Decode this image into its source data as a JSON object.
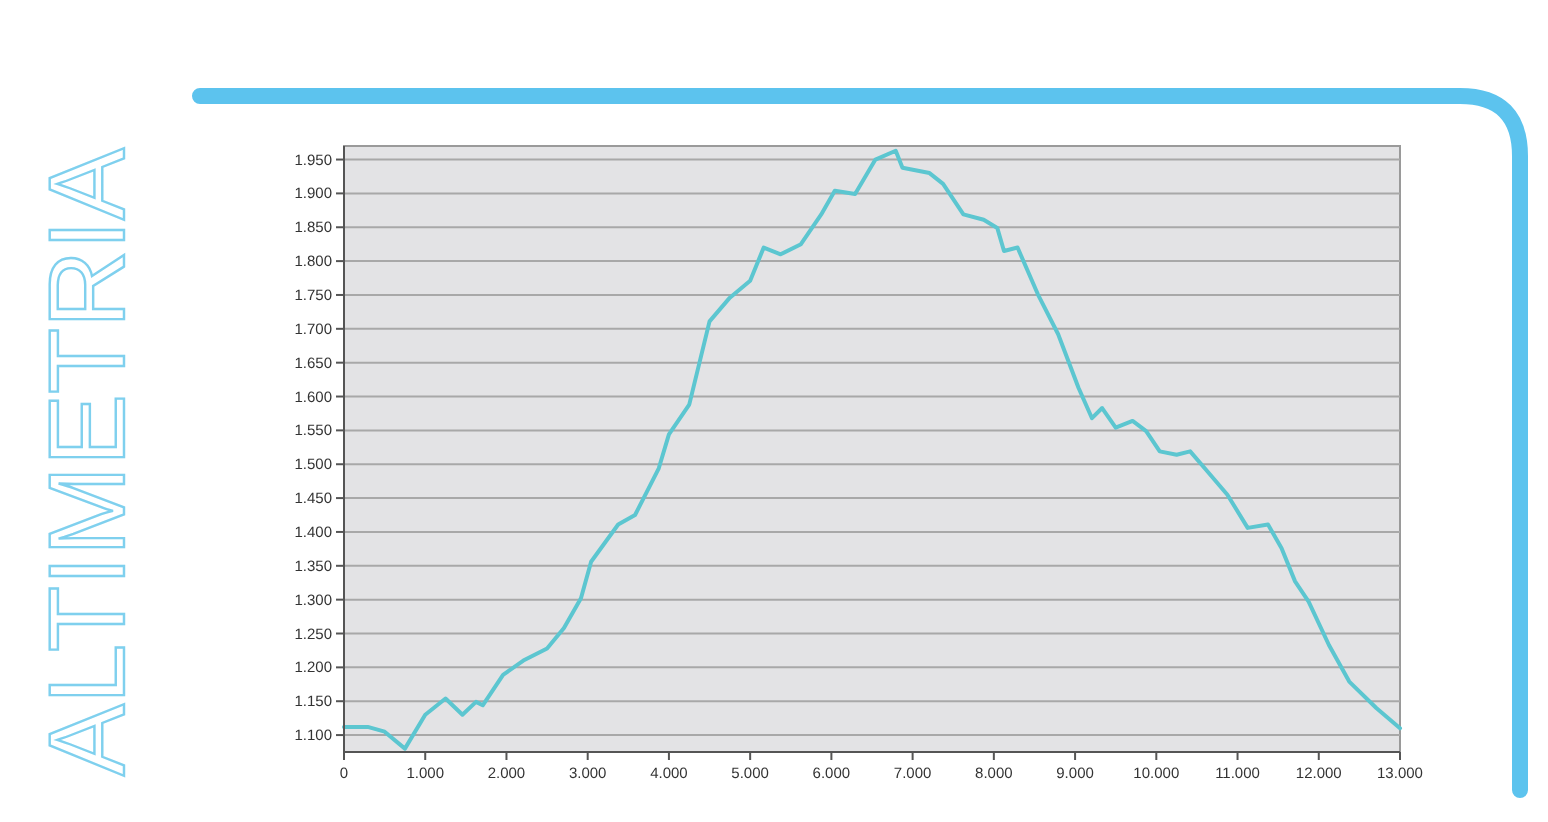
{
  "chart_data": {
    "type": "line",
    "title": "ALTIMETRIA",
    "x": [
      0,
      292,
      500,
      750,
      1000,
      1250,
      1458,
      1625,
      1708,
      1958,
      2208,
      2500,
      2708,
      2917,
      3042,
      3375,
      3583,
      3875,
      4000,
      4250,
      4500,
      4750,
      5000,
      5167,
      5375,
      5625,
      5875,
      6042,
      6292,
      6542,
      6792,
      6875,
      7208,
      7375,
      7625,
      7875,
      8042,
      8125,
      8292,
      8542,
      8792,
      9042,
      9208,
      9333,
      9500,
      9708,
      9875,
      10042,
      10250,
      10417,
      10625,
      10875,
      11125,
      11375,
      11542,
      11708,
      11875,
      12125,
      12375,
      12708,
      13000
    ],
    "series": [
      {
        "color": "#5cc6d0",
        "values": [
          1112,
          1112,
          1105,
          1080,
          1130,
          1154,
          1130,
          1149,
          1144,
          1189,
          1210,
          1228,
          1258,
          1302,
          1356,
          1411,
          1425,
          1494,
          1544,
          1588,
          1711,
          1746,
          1771,
          1820,
          1810,
          1825,
          1869,
          1904,
          1899,
          1950,
          1963,
          1938,
          1930,
          1914,
          1869,
          1861,
          1849,
          1815,
          1820,
          1751,
          1692,
          1613,
          1568,
          1583,
          1554,
          1564,
          1549,
          1519,
          1514,
          1519,
          1490,
          1455,
          1406,
          1411,
          1376,
          1327,
          1297,
          1233,
          1179,
          1140,
          1110
        ]
      }
    ],
    "xlim": [
      0,
      13000
    ],
    "xticks": [
      0,
      {
        "value": 1000,
        "label": "1.000"
      },
      {
        "value": 2000,
        "label": "2.000"
      },
      {
        "value": 3000,
        "label": "3.000"
      },
      {
        "value": 4000,
        "label": "4.000"
      },
      {
        "value": 5000,
        "label": "5.000"
      },
      {
        "value": 6000,
        "label": "6.000"
      },
      {
        "value": 7000,
        "label": "7.000"
      },
      {
        "value": 8000,
        "label": "8.000"
      },
      {
        "value": 9000,
        "label": "9.000"
      },
      {
        "value": 10000,
        "label": "10.000"
      },
      {
        "value": 11000,
        "label": "11.000"
      },
      {
        "value": 12000,
        "label": "12.000"
      },
      {
        "value": 13000,
        "label": "13.000"
      }
    ],
    "ylim": [
      1075,
      1970
    ],
    "yticks": [
      {
        "value": 1100,
        "label": "1.100"
      },
      {
        "value": 1150,
        "label": "1.150"
      },
      {
        "value": 1200,
        "label": "1.200"
      },
      {
        "value": 1250,
        "label": "1.250"
      },
      {
        "value": 1300,
        "label": "1.300"
      },
      {
        "value": 1350,
        "label": "1.350"
      },
      {
        "value": 1400,
        "label": "1.400"
      },
      {
        "value": 1450,
        "label": "1.450"
      },
      {
        "value": 1500,
        "label": "1.500"
      },
      {
        "value": 1550,
        "label": "1.550"
      },
      {
        "value": 1600,
        "label": "1.600"
      },
      {
        "value": 1650,
        "label": "1.650"
      },
      {
        "value": 1700,
        "label": "1.700"
      },
      {
        "value": 1750,
        "label": "1.750"
      },
      {
        "value": 1800,
        "label": "1.800"
      },
      {
        "value": 1850,
        "label": "1.850"
      },
      {
        "value": 1900,
        "label": "1.900"
      },
      {
        "value": 1950,
        "label": "1.950"
      }
    ],
    "grid": "y",
    "marker": "none",
    "line_style": "solid"
  }
}
